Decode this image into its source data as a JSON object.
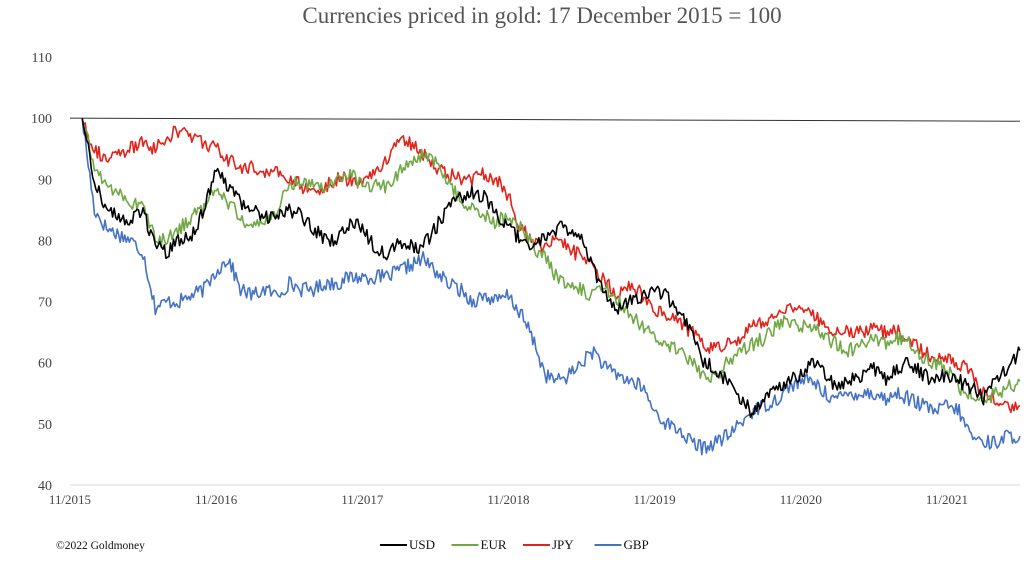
{
  "chart_data": {
    "type": "line",
    "title": "Currencies priced in gold: 17 December 2015 = 100",
    "xlabel": "",
    "ylabel": "",
    "ylim": [
      40,
      110
    ],
    "y_ticks": [
      40,
      50,
      60,
      70,
      80,
      90,
      100,
      110
    ],
    "x_range": [
      "2015-11",
      "2022-05"
    ],
    "x_ticks": [
      "11/2015",
      "11/2016",
      "11/2017",
      "11/2018",
      "11/2019",
      "11/2020",
      "11/2021"
    ],
    "grid": false,
    "legend": "bottom",
    "reference_line": {
      "y": 100,
      "y_end": 99.5,
      "color": "#333333"
    },
    "x": [
      "2015-12",
      "2016-01",
      "2016-02",
      "2016-03",
      "2016-04",
      "2016-05",
      "2016-06",
      "2016-07",
      "2016-08",
      "2016-09",
      "2016-10",
      "2016-11",
      "2016-12",
      "2017-01",
      "2017-02",
      "2017-03",
      "2017-04",
      "2017-05",
      "2017-06",
      "2017-07",
      "2017-08",
      "2017-09",
      "2017-10",
      "2017-11",
      "2017-12",
      "2018-01",
      "2018-02",
      "2018-03",
      "2018-04",
      "2018-05",
      "2018-06",
      "2018-07",
      "2018-08",
      "2018-09",
      "2018-10",
      "2018-11",
      "2018-12",
      "2019-01",
      "2019-02",
      "2019-03",
      "2019-04",
      "2019-05",
      "2019-06",
      "2019-07",
      "2019-08",
      "2019-09",
      "2019-10",
      "2019-11",
      "2019-12",
      "2020-01",
      "2020-02",
      "2020-03",
      "2020-04",
      "2020-05",
      "2020-06",
      "2020-07",
      "2020-08",
      "2020-09",
      "2020-10",
      "2020-11",
      "2020-12",
      "2021-01",
      "2021-02",
      "2021-03",
      "2021-04",
      "2021-05",
      "2021-06",
      "2021-07",
      "2021-08",
      "2021-09",
      "2021-10",
      "2021-11",
      "2021-12",
      "2022-01",
      "2022-02",
      "2022-03",
      "2022-04",
      "2022-05"
    ],
    "series": [
      {
        "name": "USD",
        "color": "#000000",
        "values": [
          100,
          90,
          85,
          84,
          83,
          85,
          79,
          78,
          80,
          81,
          85,
          91,
          89,
          86,
          85,
          84,
          84,
          85,
          84,
          82,
          80,
          80,
          83,
          82,
          79,
          78,
          80,
          79,
          79,
          82,
          85,
          87,
          88,
          87,
          84,
          82,
          80,
          79,
          81,
          82,
          82,
          81,
          75,
          71,
          69,
          70,
          71,
          72,
          71,
          68,
          65,
          60,
          59,
          57,
          54,
          52,
          54,
          56,
          57,
          58,
          60,
          58,
          56,
          57,
          58,
          59,
          57,
          59,
          60,
          58,
          57,
          58,
          57,
          56,
          54,
          57,
          59,
          62
        ]
      },
      {
        "name": "EUR",
        "color": "#70a845",
        "values": [
          100,
          92,
          89,
          88,
          86,
          86,
          80,
          80,
          82,
          84,
          85,
          89,
          86,
          84,
          82,
          83,
          85,
          89,
          90,
          89,
          89,
          90,
          91,
          89,
          89,
          89,
          91,
          93,
          94,
          93,
          89,
          87,
          85,
          84,
          83,
          84,
          82,
          79,
          77,
          74,
          72,
          72,
          71,
          72,
          70,
          68,
          66,
          64,
          63,
          62,
          60,
          58,
          58,
          60,
          62,
          63,
          64,
          66,
          67,
          66,
          66,
          64,
          63,
          62,
          63,
          64,
          63,
          64,
          63,
          61,
          60,
          59,
          56,
          55,
          54,
          55,
          56,
          57
        ]
      },
      {
        "name": "JPY",
        "color": "#e3231b",
        "values": [
          100,
          95,
          93,
          94,
          95,
          96,
          95,
          97,
          98,
          97,
          96,
          95,
          93,
          92,
          92,
          91,
          91,
          90,
          89,
          88,
          89,
          90,
          90,
          90,
          91,
          93,
          97,
          96,
          94,
          92,
          91,
          90,
          90,
          91,
          90,
          87,
          82,
          80,
          79,
          80,
          79,
          77,
          75,
          73,
          71,
          73,
          71,
          69,
          68,
          67,
          65,
          63,
          62,
          63,
          64,
          66,
          67,
          68,
          69,
          68,
          68,
          66,
          65,
          65,
          65,
          66,
          65,
          65,
          64,
          62,
          61,
          61,
          60,
          58,
          55,
          54,
          53,
          53
        ]
      },
      {
        "name": "GBP",
        "color": "#4472c4",
        "values": [
          100,
          85,
          82,
          81,
          80,
          78,
          69,
          70,
          70,
          71,
          72,
          75,
          77,
          72,
          71,
          72,
          71,
          73,
          72,
          72,
          73,
          73,
          74,
          74,
          74,
          74,
          75,
          76,
          77,
          75,
          73,
          72,
          70,
          71,
          70,
          71,
          68,
          64,
          58,
          57,
          58,
          60,
          62,
          59,
          58,
          57,
          56,
          52,
          50,
          49,
          47,
          46,
          47,
          48,
          50,
          52,
          53,
          54,
          56,
          57,
          57,
          55,
          54,
          55,
          55,
          55,
          54,
          55,
          54,
          53,
          52,
          53,
          52,
          48,
          47,
          47,
          48,
          48
        ]
      }
    ]
  },
  "footer": {
    "copyright": "©2022 Goldmoney"
  }
}
